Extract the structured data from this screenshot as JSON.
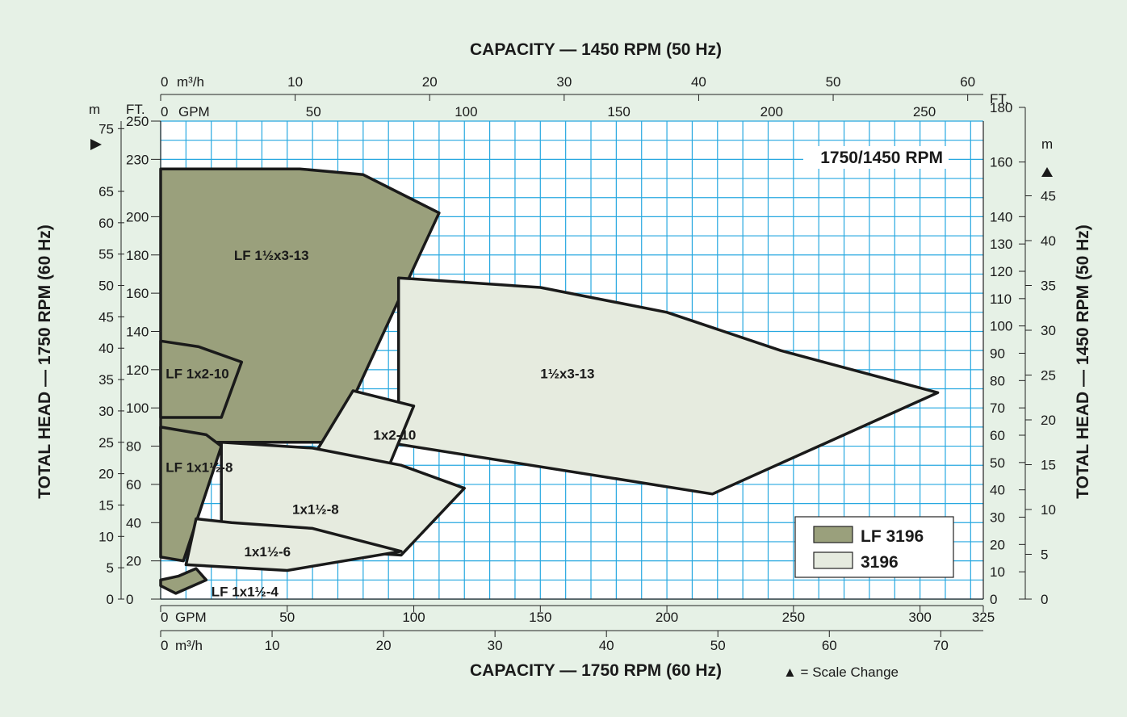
{
  "chart_data": {
    "type": "area",
    "title_top": "CAPACITY — 1450 RPM (50 Hz)",
    "title_bottom": "CAPACITY — 1750 RPM (60 Hz)",
    "ylabel_left": "TOTAL HEAD — 1750 RPM (60 Hz)",
    "ylabel_right": "TOTAL HEAD — 1450 RPM (50 Hz)",
    "speed_badge": "1750/1450 RPM",
    "scale_note": "▲ = Scale Change",
    "bottom_gpm_label": "GPM",
    "bottom_gpm_ticks": [
      "0",
      "50",
      "100",
      "150",
      "200",
      "250",
      "300",
      "325"
    ],
    "bottom_m3h_label": "m³/h",
    "bottom_m3h_ticks": [
      "0",
      "10",
      "20",
      "30",
      "40",
      "50",
      "60",
      "70"
    ],
    "top_m3h_label": "m³/h",
    "top_m3h_ticks": [
      "0",
      "10",
      "20",
      "30",
      "40",
      "50",
      "60"
    ],
    "top_gpm_label": "GPM",
    "top_gpm_ticks": [
      "0",
      "50",
      "100",
      "150",
      "200",
      "250"
    ],
    "left_ft_label": "FT.",
    "left_ft_ticks": [
      "250",
      "230",
      "200",
      "180",
      "160",
      "140",
      "120",
      "100",
      "80",
      "60",
      "40",
      "20",
      "0"
    ],
    "left_m_label": "m",
    "left_m_ticks": [
      "75",
      "65",
      "60",
      "55",
      "50",
      "45",
      "40",
      "35",
      "30",
      "25",
      "20",
      "15",
      "10",
      "5",
      "0"
    ],
    "right_ft_label": "FT.",
    "right_ft_ticks": [
      "180",
      "160",
      "140",
      "130",
      "120",
      "110",
      "100",
      "90",
      "80",
      "70",
      "60",
      "50",
      "40",
      "30",
      "20",
      "10",
      "0"
    ],
    "right_m_label": "m",
    "right_m_ticks": [
      "45",
      "40",
      "35",
      "30",
      "25",
      "20",
      "15",
      "10",
      "5",
      "0"
    ],
    "x_axis": {
      "unit": "GPM at 1750 RPM",
      "range": [
        0,
        325
      ]
    },
    "y_axis": {
      "unit": "FT. at 1750 RPM",
      "range": [
        0,
        250
      ]
    },
    "legend": [
      {
        "name": "LF 3196",
        "color": "#9aa07c"
      },
      {
        "name": "3196",
        "color": "#e6ebdf"
      }
    ],
    "regions": [
      {
        "label": "LF 1½x3-13",
        "series": "LF 3196",
        "points": [
          [
            0,
            225
          ],
          [
            55,
            225
          ],
          [
            80,
            222
          ],
          [
            110,
            202
          ],
          [
            68,
            82
          ],
          [
            0,
            82
          ]
        ]
      },
      {
        "label": "LF 1x2-10",
        "series": "LF 3196",
        "points": [
          [
            0,
            135
          ],
          [
            15,
            132
          ],
          [
            32,
            124
          ],
          [
            24,
            95
          ],
          [
            0,
            95
          ]
        ]
      },
      {
        "label": "LF 1x1½-8",
        "series": "LF 3196",
        "points": [
          [
            0,
            90
          ],
          [
            18,
            86
          ],
          [
            24,
            80
          ],
          [
            9,
            20
          ],
          [
            0,
            22
          ]
        ]
      },
      {
        "label": "LF 1x1½-4",
        "series": "LF 3196",
        "points": [
          [
            0,
            10
          ],
          [
            7,
            12
          ],
          [
            14,
            16
          ],
          [
            18,
            10
          ],
          [
            6,
            3
          ],
          [
            0,
            7
          ]
        ]
      },
      {
        "label": "1½x3-13",
        "series": "3196",
        "points": [
          [
            94,
            168
          ],
          [
            150,
            163
          ],
          [
            200,
            150
          ],
          [
            245,
            130
          ],
          [
            307,
            108
          ],
          [
            218,
            55
          ],
          [
            94,
            81
          ]
        ]
      },
      {
        "label": "1x2-10",
        "series": "3196",
        "points": [
          [
            76,
            109
          ],
          [
            100,
            101
          ],
          [
            90,
            69
          ],
          [
            60,
            74
          ],
          [
            76,
            109
          ]
        ]
      },
      {
        "label": "1x1½-8",
        "series": "3196",
        "points": [
          [
            24,
            82
          ],
          [
            60,
            79
          ],
          [
            95,
            70
          ],
          [
            120,
            58
          ],
          [
            95,
            23
          ],
          [
            60,
            26
          ],
          [
            24,
            27
          ]
        ]
      },
      {
        "label": "1x1½-6",
        "series": "3196",
        "points": [
          [
            14,
            42
          ],
          [
            28,
            40
          ],
          [
            60,
            37
          ],
          [
            95,
            25
          ],
          [
            50,
            15
          ],
          [
            10,
            18
          ]
        ]
      }
    ]
  }
}
